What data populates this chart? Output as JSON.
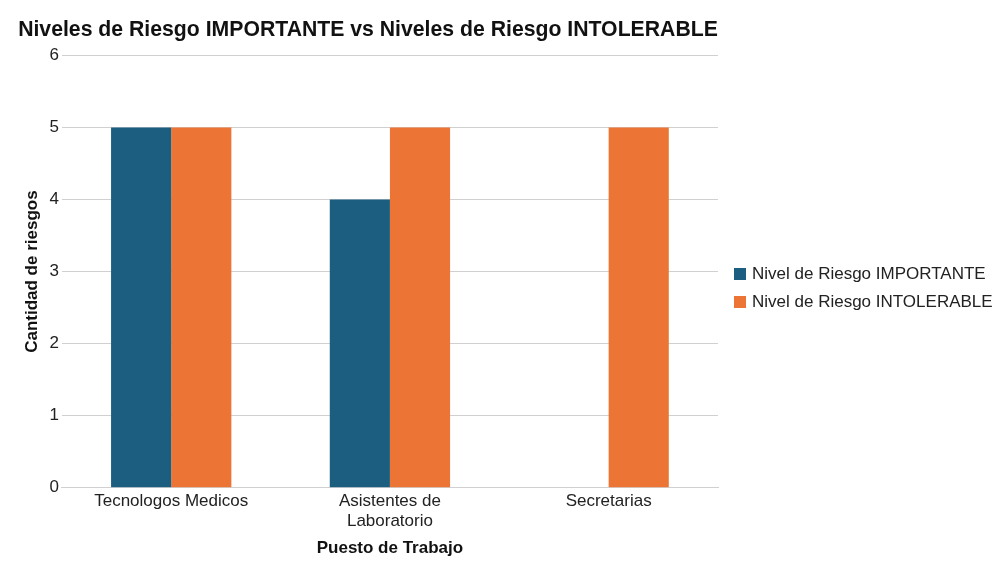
{
  "chart_data": {
    "type": "bar",
    "title": "Niveles de Riesgo IMPORTANTE vs Niveles de Riesgo INTOLERABLE",
    "xlabel": "Puesto de Trabajo",
    "ylabel": "Cantidad de riesgos",
    "categories": [
      "Tecnologos Medicos",
      "Asistentes de Laboratorio",
      "Secretarias"
    ],
    "series": [
      {
        "name": "Nivel de Riesgo IMPORTANTE",
        "color": "#1b5e80",
        "values": [
          5,
          4,
          0
        ]
      },
      {
        "name": "Nivel de Riesgo INTOLERABLE",
        "color": "#ec7434",
        "values": [
          5,
          5,
          5
        ]
      }
    ],
    "ylim": [
      0,
      6
    ],
    "yticks": [
      0,
      1,
      2,
      3,
      4,
      5,
      6
    ],
    "grid": "y",
    "legend": "right"
  }
}
